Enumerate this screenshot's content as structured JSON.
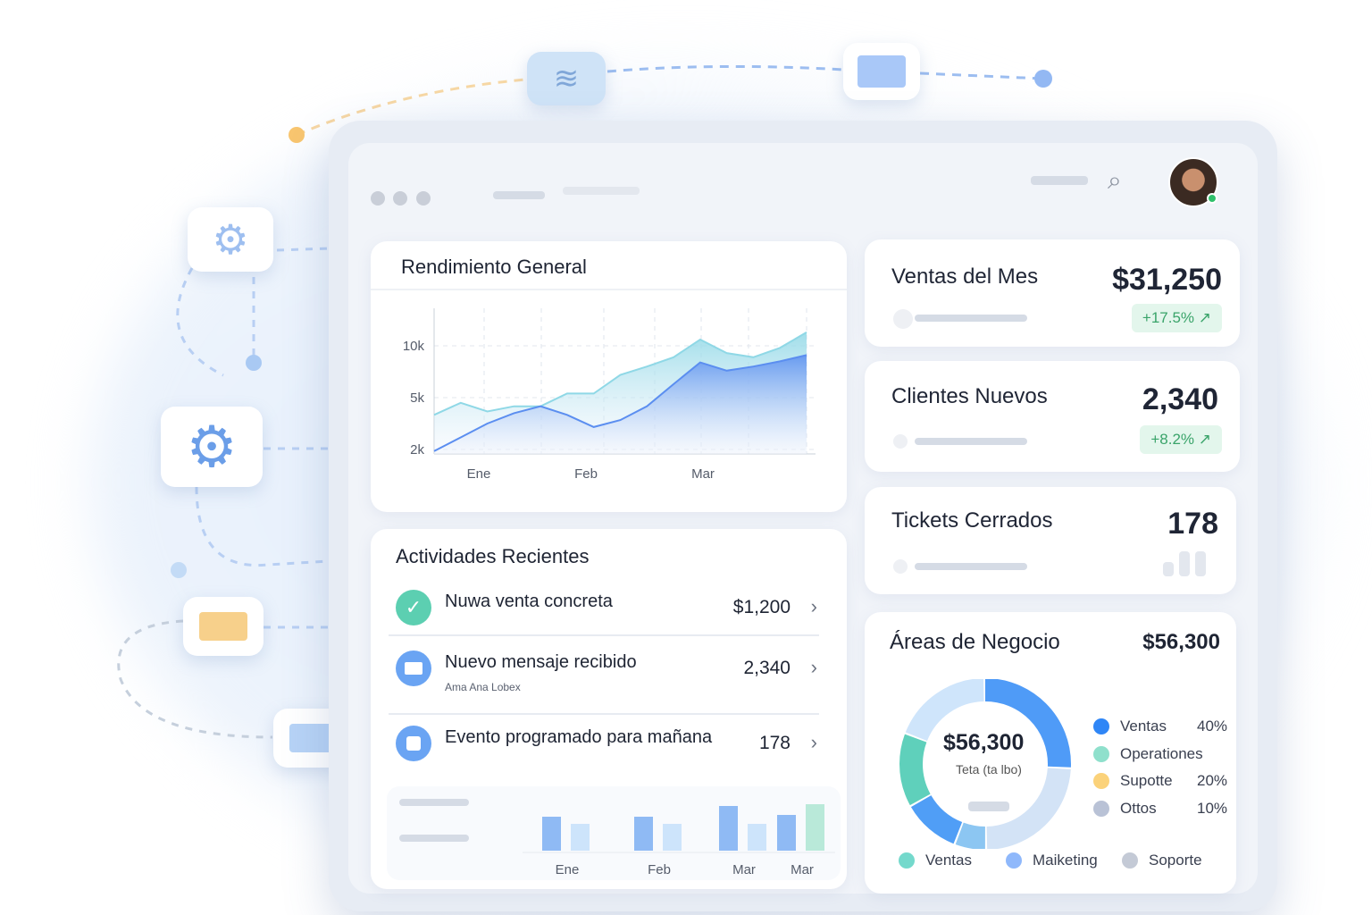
{
  "header": {
    "avatar_alt": "user-avatar"
  },
  "performance": {
    "title": "Rendimiento General"
  },
  "chart_data": [
    {
      "type": "area",
      "title": "Rendimiento General",
      "x_ticks": [
        "Ene",
        "Feb",
        "Mar"
      ],
      "y_ticks": [
        "10k",
        "5k",
        "2k"
      ],
      "y_tick_values": [
        10,
        5,
        2
      ],
      "grid": true,
      "series": [
        {
          "values": [
            1.9,
            2.7,
            3.5,
            4.1,
            4.5,
            4.0,
            3.3,
            3.7,
            4.5,
            6.3,
            8.4,
            7.6,
            8.0,
            8.5,
            9.1
          ]
        },
        {
          "values": [
            4.0,
            4.7,
            4.2,
            4.5,
            4.5,
            5.4,
            5.4,
            7.2,
            8.0,
            8.9,
            10.6,
            9.3,
            8.9,
            9.8,
            11.3
          ]
        }
      ],
      "colors": [
        "#5b8ef0",
        "#8fd8e6"
      ]
    },
    {
      "type": "bar",
      "categories": [
        "Ene",
        "Feb",
        "Mar",
        "Mar"
      ],
      "series": [
        {
          "values": [
            38,
            38,
            50,
            40
          ]
        },
        {
          "values": [
            30,
            30,
            30,
            52
          ]
        }
      ]
    },
    {
      "type": "pie",
      "title": "Áreas de Negocio",
      "values": [
        26,
        24,
        6,
        11,
        14,
        19
      ],
      "colors": [
        "#4f9bf7",
        "#d3e3f6",
        "#8cc6f2",
        "#509ef6",
        "#5fd0bb",
        "#cfe5fb"
      ]
    }
  ],
  "activities": {
    "title": "Actividades Recientes",
    "items": [
      {
        "title": "Nuwa venta concreta",
        "sub": "",
        "value": "$1,200",
        "icon": "check-icon",
        "color": "#5ccfb1"
      },
      {
        "title": "Nuevo mensaje recibido",
        "sub": "Ama Ana Lobex",
        "value": "2,340",
        "icon": "mail-icon",
        "color": "#6aa4f3"
      },
      {
        "title": "Evento programado para mañana",
        "sub": "",
        "value": "178",
        "icon": "calendar-icon",
        "color": "#6aa4f3"
      }
    ]
  },
  "kpis": [
    {
      "title": "Ventas del Mes",
      "value": "$31,250",
      "change": "+17.5% ↗"
    },
    {
      "title": "Clientes Nuevos",
      "value": "2,340",
      "change": "+8.2% ↗"
    },
    {
      "title": "Tickets Cerrados",
      "value": "178",
      "change": ""
    }
  ],
  "areas": {
    "title": "Áreas de Negocio",
    "total": "$56,300",
    "center_value": "$56,300",
    "center_label": "Teta (ta lbo)",
    "legend": [
      {
        "label": "Ventas",
        "pct": "40%",
        "color": "#2f86f6"
      },
      {
        "label": "Operationes",
        "pct": "",
        "color": "#8fe0cc"
      },
      {
        "label": "Supotte",
        "pct": "20%",
        "color": "#fbd27a"
      },
      {
        "label": "Ottos",
        "pct": "10%",
        "color": "#b9c2d6"
      }
    ],
    "bottom_legend": [
      {
        "label": "Ventas",
        "color": "#74d9cc"
      },
      {
        "label": "Maiketing",
        "color": "#8fb8fb"
      },
      {
        "label": "Soporte",
        "color": "#c4cad6"
      }
    ]
  }
}
